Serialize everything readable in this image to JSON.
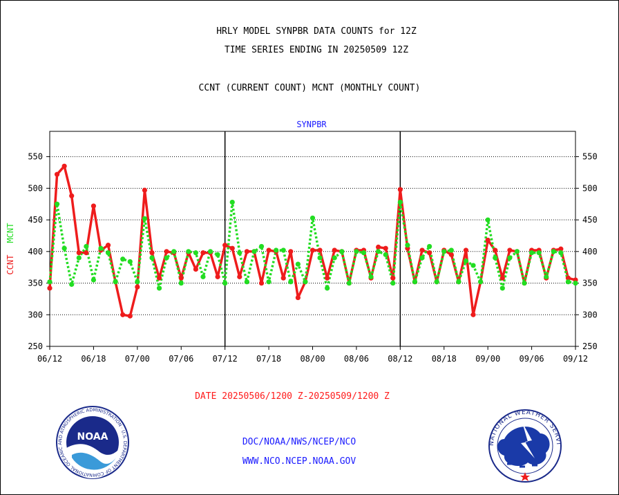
{
  "titles": {
    "line1": "HRLY MODEL SYNPBR DATA COUNTS for 12Z",
    "line2": "TIME SERIES ENDING IN 20250509 12Z",
    "line3": "CCNT (CURRENT COUNT) MCNT (MONTHLY COUNT)"
  },
  "footer": {
    "date_range": "DATE 20250506/1200 Z-20250509/1200 Z",
    "org_path": "DOC/NOAA/NWS/NCEP/NCO",
    "website": "WWW.NCO.NCEP.NOAA.GOV"
  },
  "logos": {
    "noaa_text": "NOAA",
    "noaa_ring": "NATIONAL OCEANIC AND ATMOSPHERIC ADMINISTRATION · U.S. DEPARTMENT OF COMMERCE",
    "nws_ring": "NATIONAL WEATHER SERVICE"
  },
  "colors": {
    "ccnt": "#ee1c1c",
    "mcnt": "#22dd22",
    "axis_title": "#1a1aff"
  },
  "chart_data": {
    "type": "line",
    "title": "SYNPBR",
    "ylabel_left": [
      "CCNT",
      "MCNT"
    ],
    "ylim": [
      250,
      590
    ],
    "yticks": [
      250,
      300,
      350,
      400,
      450,
      500,
      550
    ],
    "xticks": [
      "06/12",
      "06/18",
      "07/00",
      "07/06",
      "07/12",
      "07/18",
      "08/00",
      "08/06",
      "08/12",
      "08/18",
      "09/00",
      "09/06",
      "09/12"
    ],
    "xlim": [
      0,
      72
    ],
    "day_separators": [
      24,
      48
    ],
    "grid": true,
    "series": [
      {
        "name": "CCNT",
        "x": [
          0,
          1,
          2,
          3,
          4,
          5,
          6,
          7,
          8,
          9,
          10,
          11,
          12,
          13,
          14,
          15,
          16,
          17,
          18,
          19,
          20,
          21,
          22,
          23,
          24,
          25,
          26,
          27,
          28,
          29,
          30,
          31,
          32,
          33,
          34,
          35,
          36,
          37,
          38,
          39,
          40,
          41,
          42,
          43,
          44,
          45,
          46,
          47,
          48,
          49,
          50,
          51,
          52,
          53,
          54,
          55,
          56,
          57,
          58,
          59,
          60,
          61,
          62,
          63,
          64,
          65,
          66,
          67,
          68,
          69,
          70,
          71,
          72
        ],
        "values": [
          342,
          522,
          535,
          488,
          398,
          398,
          472,
          402,
          410,
          352,
          300,
          298,
          344,
          497,
          398,
          358,
          400,
          398,
          358,
          398,
          372,
          398,
          398,
          360,
          410,
          405,
          360,
          400,
          400,
          350,
          402,
          400,
          358,
          400,
          327,
          352,
          402,
          402,
          358,
          402,
          400,
          350,
          402,
          402,
          358,
          407,
          405,
          358,
          498,
          405,
          352,
          402,
          398,
          352,
          402,
          395,
          352,
          402,
          300,
          352,
          418,
          402,
          358,
          402,
          400,
          350,
          402,
          402,
          358,
          402,
          404,
          358,
          355
        ],
        "style": "solid"
      },
      {
        "name": "MCNT",
        "x": [
          0,
          1,
          2,
          3,
          4,
          5,
          6,
          7,
          8,
          9,
          10,
          11,
          12,
          13,
          14,
          15,
          16,
          17,
          18,
          19,
          20,
          21,
          22,
          23,
          24,
          25,
          26,
          27,
          28,
          29,
          30,
          31,
          32,
          33,
          34,
          35,
          36,
          37,
          38,
          39,
          40,
          41,
          42,
          43,
          44,
          45,
          46,
          47,
          48,
          49,
          50,
          51,
          52,
          53,
          54,
          55,
          56,
          57,
          58,
          59,
          60,
          61,
          62,
          63,
          64,
          65,
          66,
          67,
          68,
          69,
          70,
          71,
          72
        ],
        "values": [
          352,
          475,
          405,
          348,
          390,
          408,
          355,
          405,
          398,
          352,
          388,
          384,
          352,
          452,
          390,
          342,
          390,
          400,
          350,
          400,
          398,
          360,
          400,
          395,
          350,
          478,
          398,
          352,
          400,
          408,
          352,
          402,
          402,
          352,
          380,
          352,
          453,
          390,
          342,
          390,
          400,
          350,
          400,
          398,
          360,
          400,
          395,
          350,
          478,
          410,
          352,
          390,
          408,
          352,
          400,
          402,
          352,
          385,
          378,
          352,
          450,
          390,
          342,
          390,
          400,
          350,
          398,
          398,
          360,
          400,
          398,
          352,
          350
        ],
        "style": "dotted"
      }
    ]
  }
}
